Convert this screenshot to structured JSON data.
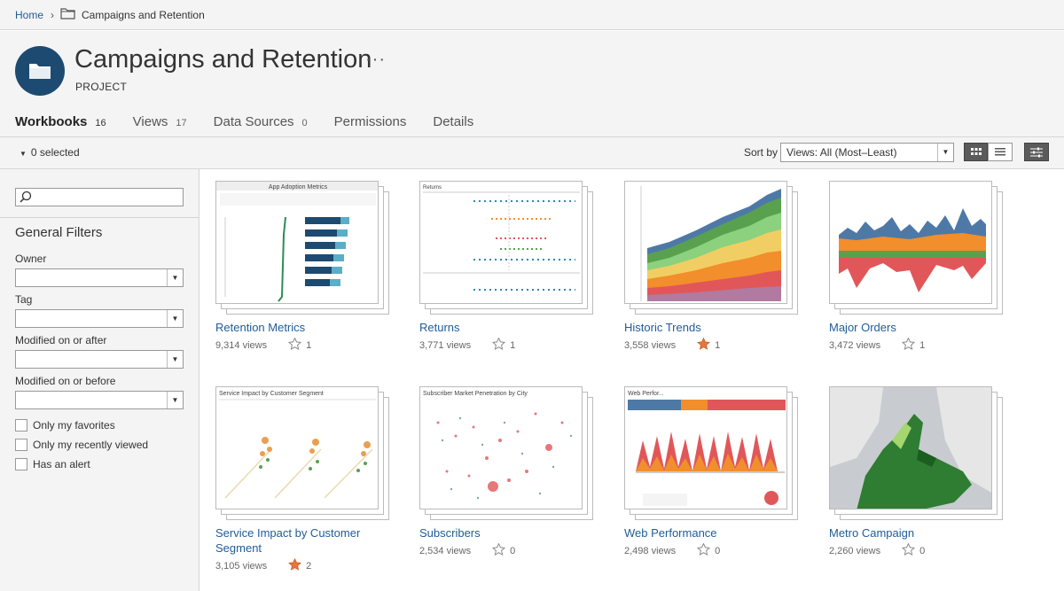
{
  "breadcrumb": {
    "home": "Home",
    "separator": "›",
    "current": "Campaigns and Retention"
  },
  "project": {
    "title": "Campaigns and Retention",
    "type_label": "PROJECT",
    "more": "···"
  },
  "tabs": [
    {
      "label": "Workbooks",
      "count": "16"
    },
    {
      "label": "Views",
      "count": "17"
    },
    {
      "label": "Data Sources",
      "count": "0"
    },
    {
      "label": "Permissions",
      "count": ""
    },
    {
      "label": "Details",
      "count": ""
    }
  ],
  "toolbar": {
    "selected": "0 selected",
    "sort_label": "Sort by",
    "sort_value": "Views: All (Most–Least)"
  },
  "sidebar": {
    "search_placeholder": "",
    "heading": "General Filters",
    "filters": [
      "Owner",
      "Tag",
      "Modified on or after",
      "Modified on or before"
    ],
    "checkboxes": [
      "Only my favorites",
      "Only my recently viewed",
      "Has an alert"
    ]
  },
  "workbooks": [
    {
      "title": "Retention Metrics",
      "views": "9,314 views",
      "favorites": "1",
      "favorited": false,
      "thumb_title": "App Adoption Metrics"
    },
    {
      "title": "Returns",
      "views": "3,771 views",
      "favorites": "1",
      "favorited": false,
      "thumb_title": "Returns"
    },
    {
      "title": "Historic Trends",
      "views": "3,558 views",
      "favorites": "1",
      "favorited": true,
      "thumb_title": ""
    },
    {
      "title": "Major Orders",
      "views": "3,472 views",
      "favorites": "1",
      "favorited": false,
      "thumb_title": ""
    },
    {
      "title": "Service Impact by Customer Segment",
      "views": "3,105 views",
      "favorites": "2",
      "favorited": true,
      "thumb_title": "Service Impact by Customer Segment"
    },
    {
      "title": "Subscribers",
      "views": "2,534 views",
      "favorites": "0",
      "favorited": false,
      "thumb_title": "Subscriber Market Penetration by City"
    },
    {
      "title": "Web Performance",
      "views": "2,498 views",
      "favorites": "0",
      "favorited": false,
      "thumb_title": "Web Perfor..."
    },
    {
      "title": "Metro Campaign",
      "views": "2,260 views",
      "favorites": "0",
      "favorited": false,
      "thumb_title": ""
    }
  ],
  "colors": {
    "link": "#1f5c99",
    "accent": "#1d4a70",
    "star_filled": "#e8763a"
  },
  "icons": {
    "folder": "folder-icon",
    "star": "star-icon",
    "grid": "grid-view-icon",
    "list": "list-view-icon",
    "filter": "filter-sliders-icon",
    "search": "search-icon"
  }
}
